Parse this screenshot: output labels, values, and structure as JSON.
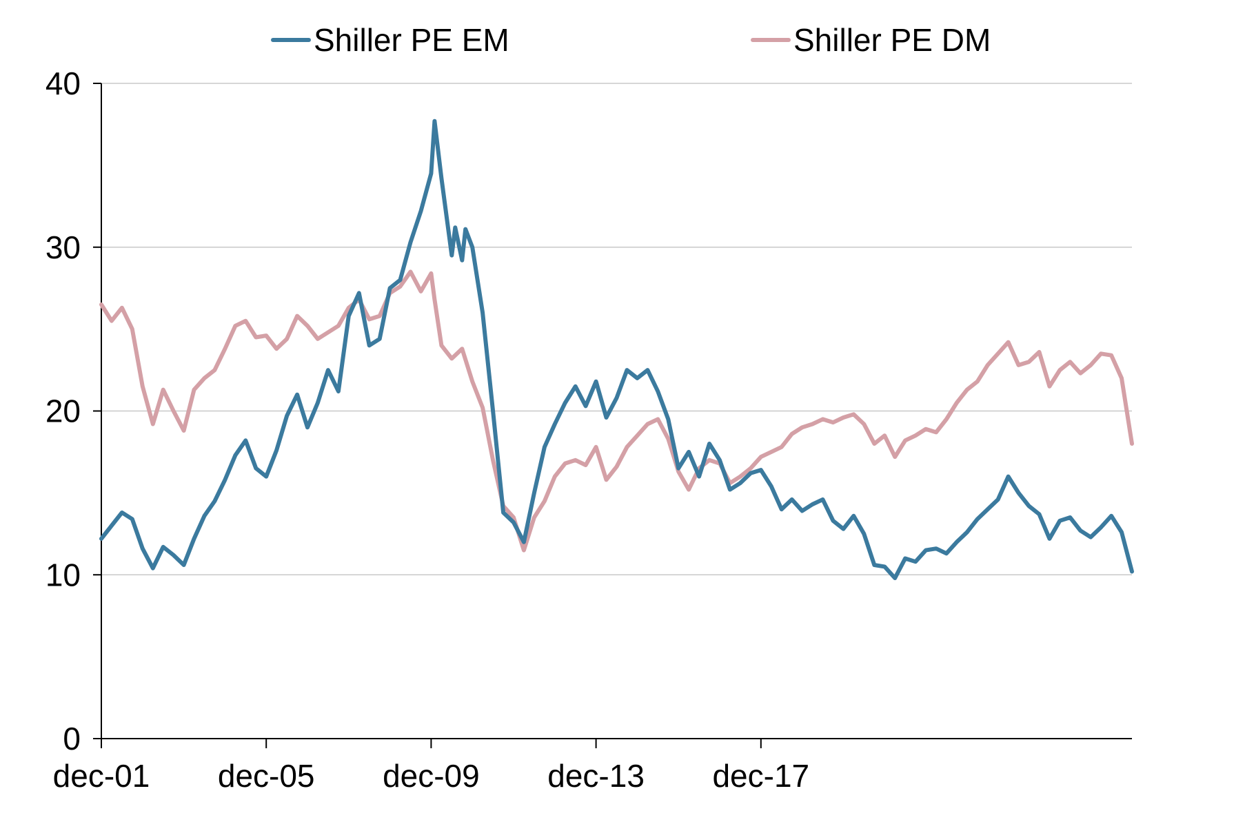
{
  "chart_data": {
    "type": "line",
    "title": "",
    "xlabel": "",
    "ylabel": "",
    "ylim": [
      0,
      40
    ],
    "yticks": [
      0,
      10,
      20,
      30,
      40
    ],
    "xticks": [
      "dec-01",
      "dec-05",
      "dec-09",
      "dec-13",
      "dec-17"
    ],
    "grid": "horizontal",
    "legend_position": "top",
    "x_start": "2001-12",
    "x_end": "2020-03",
    "series": [
      {
        "name": "Shiller PE EM",
        "color": "#3b7a9e",
        "points": [
          [
            "2001-12",
            12.2
          ],
          [
            "2002-03",
            13.0
          ],
          [
            "2002-06",
            13.8
          ],
          [
            "2002-09",
            13.4
          ],
          [
            "2002-12",
            11.6
          ],
          [
            "2003-03",
            10.4
          ],
          [
            "2003-06",
            11.7
          ],
          [
            "2003-09",
            11.2
          ],
          [
            "2003-12",
            10.6
          ],
          [
            "2004-03",
            12.2
          ],
          [
            "2004-06",
            13.6
          ],
          [
            "2004-09",
            14.5
          ],
          [
            "2004-12",
            15.8
          ],
          [
            "2005-03",
            17.3
          ],
          [
            "2005-06",
            18.2
          ],
          [
            "2005-09",
            16.5
          ],
          [
            "2005-12",
            16.0
          ],
          [
            "2006-03",
            17.6
          ],
          [
            "2006-06",
            19.7
          ],
          [
            "2006-09",
            21.0
          ],
          [
            "2006-12",
            19.0
          ],
          [
            "2007-03",
            20.5
          ],
          [
            "2007-06",
            22.5
          ],
          [
            "2007-09",
            21.2
          ],
          [
            "2007-12",
            25.8
          ],
          [
            "2008-03",
            27.2
          ],
          [
            "2008-06",
            24.0
          ],
          [
            "2008-09",
            24.4
          ],
          [
            "2008-12",
            27.5
          ],
          [
            "2009-03",
            28.0
          ],
          [
            "2009-06",
            30.3
          ],
          [
            "2009-09",
            32.2
          ],
          [
            "2009-12",
            34.5
          ],
          [
            "2010-01",
            37.7
          ],
          [
            "2010-03",
            34.2
          ],
          [
            "2010-06",
            29.5
          ],
          [
            "2010-07",
            31.2
          ],
          [
            "2010-09",
            29.2
          ],
          [
            "2010-10",
            31.1
          ],
          [
            "2010-12",
            30.0
          ],
          [
            "2011-03",
            26.0
          ],
          [
            "2011-06",
            20.0
          ],
          [
            "2011-09",
            13.8
          ],
          [
            "2011-12",
            13.2
          ],
          [
            "2012-03",
            12.0
          ],
          [
            "2012-06",
            15.0
          ],
          [
            "2012-09",
            17.8
          ],
          [
            "2012-12",
            19.2
          ],
          [
            "2013-03",
            20.5
          ],
          [
            "2013-06",
            21.5
          ],
          [
            "2013-09",
            20.3
          ],
          [
            "2013-12",
            21.8
          ],
          [
            "2014-03",
            19.6
          ],
          [
            "2014-06",
            20.8
          ],
          [
            "2014-09",
            22.5
          ],
          [
            "2014-12",
            22.0
          ],
          [
            "2015-03",
            22.5
          ],
          [
            "2015-06",
            21.2
          ],
          [
            "2015-09",
            19.5
          ],
          [
            "2015-12",
            16.5
          ],
          [
            "2016-03",
            17.5
          ],
          [
            "2016-06",
            16.0
          ],
          [
            "2016-09",
            18.0
          ],
          [
            "2016-12",
            17.0
          ],
          [
            "2017-03",
            15.2
          ],
          [
            "2017-06",
            15.6
          ],
          [
            "2017-09",
            16.2
          ],
          [
            "2017-12",
            16.4
          ],
          [
            "2018-03",
            15.4
          ],
          [
            "2018-06",
            14.0
          ],
          [
            "2018-09",
            14.6
          ],
          [
            "2018-12",
            13.9
          ],
          [
            "2019-03",
            14.3
          ],
          [
            "2019-06",
            14.6
          ],
          [
            "2019-09",
            13.3
          ],
          [
            "2019-12",
            12.8
          ],
          [
            "2020-03",
            13.6
          ],
          [
            "2020-06",
            12.5
          ],
          [
            "2020-09",
            10.6
          ],
          [
            "2020-12",
            10.5
          ],
          [
            "2021-03",
            9.8
          ],
          [
            "2021-06",
            11.0
          ],
          [
            "2021-09",
            10.8
          ],
          [
            "2021-12",
            11.5
          ],
          [
            "2022-03",
            11.6
          ],
          [
            "2022-06",
            11.3
          ],
          [
            "2022-09",
            12.0
          ],
          [
            "2022-12",
            12.6
          ],
          [
            "2023-03",
            13.4
          ],
          [
            "2023-06",
            14.0
          ],
          [
            "2023-09",
            14.6
          ],
          [
            "2023-12",
            16.0
          ],
          [
            "2024-03",
            15.0
          ],
          [
            "2024-06",
            14.2
          ],
          [
            "2024-09",
            13.7
          ],
          [
            "2024-12",
            12.2
          ],
          [
            "2025-03",
            13.3
          ],
          [
            "2025-06",
            13.5
          ],
          [
            "2025-09",
            12.7
          ],
          [
            "2025-12",
            12.3
          ],
          [
            "2026-03",
            12.9
          ],
          [
            "2026-06",
            13.6
          ],
          [
            "2026-09",
            12.6
          ],
          [
            "2026-12",
            10.2
          ]
        ]
      },
      {
        "name": "Shiller PE DM",
        "color": "#d4a0a6",
        "points": [
          [
            "2001-12",
            26.5
          ],
          [
            "2002-03",
            25.5
          ],
          [
            "2002-06",
            26.3
          ],
          [
            "2002-09",
            25.0
          ],
          [
            "2002-12",
            21.5
          ],
          [
            "2003-03",
            19.2
          ],
          [
            "2003-06",
            21.3
          ],
          [
            "2003-09",
            20.0
          ],
          [
            "2003-12",
            18.8
          ],
          [
            "2004-03",
            21.3
          ],
          [
            "2004-06",
            22.0
          ],
          [
            "2004-09",
            22.5
          ],
          [
            "2004-12",
            23.8
          ],
          [
            "2005-03",
            25.2
          ],
          [
            "2005-06",
            25.5
          ],
          [
            "2005-09",
            24.5
          ],
          [
            "2005-12",
            24.6
          ],
          [
            "2006-03",
            23.8
          ],
          [
            "2006-06",
            24.4
          ],
          [
            "2006-09",
            25.8
          ],
          [
            "2006-12",
            25.2
          ],
          [
            "2007-03",
            24.4
          ],
          [
            "2007-06",
            24.8
          ],
          [
            "2007-09",
            25.2
          ],
          [
            "2007-12",
            26.3
          ],
          [
            "2008-03",
            26.8
          ],
          [
            "2008-06",
            25.6
          ],
          [
            "2008-09",
            25.8
          ],
          [
            "2008-12",
            27.2
          ],
          [
            "2009-03",
            27.6
          ],
          [
            "2009-06",
            28.5
          ],
          [
            "2009-09",
            27.3
          ],
          [
            "2009-12",
            28.4
          ],
          [
            "2010-01",
            26.8
          ],
          [
            "2010-03",
            24.0
          ],
          [
            "2010-06",
            23.2
          ],
          [
            "2010-09",
            23.8
          ],
          [
            "2010-12",
            21.8
          ],
          [
            "2011-03",
            20.2
          ],
          [
            "2011-06",
            17.0
          ],
          [
            "2011-09",
            14.2
          ],
          [
            "2011-12",
            13.5
          ],
          [
            "2012-03",
            11.5
          ],
          [
            "2012-06",
            13.5
          ],
          [
            "2012-09",
            14.5
          ],
          [
            "2012-12",
            16.0
          ],
          [
            "2013-03",
            16.8
          ],
          [
            "2013-06",
            17.0
          ],
          [
            "2013-09",
            16.7
          ],
          [
            "2013-12",
            17.8
          ],
          [
            "2014-03",
            15.8
          ],
          [
            "2014-06",
            16.6
          ],
          [
            "2014-09",
            17.8
          ],
          [
            "2014-12",
            18.5
          ],
          [
            "2015-03",
            19.2
          ],
          [
            "2015-06",
            19.5
          ],
          [
            "2015-09",
            18.3
          ],
          [
            "2015-12",
            16.3
          ],
          [
            "2016-03",
            15.2
          ],
          [
            "2016-06",
            16.5
          ],
          [
            "2016-09",
            17.0
          ],
          [
            "2016-12",
            16.8
          ],
          [
            "2017-03",
            15.6
          ],
          [
            "2017-06",
            16.0
          ],
          [
            "2017-09",
            16.5
          ],
          [
            "2017-12",
            17.2
          ],
          [
            "2018-03",
            17.5
          ],
          [
            "2018-06",
            17.8
          ],
          [
            "2018-09",
            18.6
          ],
          [
            "2018-12",
            19.0
          ],
          [
            "2019-03",
            19.2
          ],
          [
            "2019-06",
            19.5
          ],
          [
            "2019-09",
            19.3
          ],
          [
            "2019-12",
            19.6
          ],
          [
            "2020-03",
            19.8
          ],
          [
            "2020-06",
            19.2
          ],
          [
            "2020-09",
            18.0
          ],
          [
            "2020-12",
            18.5
          ],
          [
            "2021-03",
            17.2
          ],
          [
            "2021-06",
            18.2
          ],
          [
            "2021-09",
            18.5
          ],
          [
            "2021-12",
            18.9
          ],
          [
            "2022-03",
            18.7
          ],
          [
            "2022-06",
            19.5
          ],
          [
            "2022-09",
            20.5
          ],
          [
            "2022-12",
            21.3
          ],
          [
            "2023-03",
            21.8
          ],
          [
            "2023-06",
            22.8
          ],
          [
            "2023-09",
            23.5
          ],
          [
            "2023-12",
            24.2
          ],
          [
            "2024-03",
            22.8
          ],
          [
            "2024-06",
            23.0
          ],
          [
            "2024-09",
            23.6
          ],
          [
            "2024-12",
            21.5
          ],
          [
            "2025-03",
            22.5
          ],
          [
            "2025-06",
            23.0
          ],
          [
            "2025-09",
            22.3
          ],
          [
            "2025-12",
            22.8
          ],
          [
            "2026-03",
            23.5
          ],
          [
            "2026-06",
            23.4
          ],
          [
            "2026-09",
            22.0
          ],
          [
            "2026-12",
            18.0
          ]
        ]
      }
    ]
  }
}
